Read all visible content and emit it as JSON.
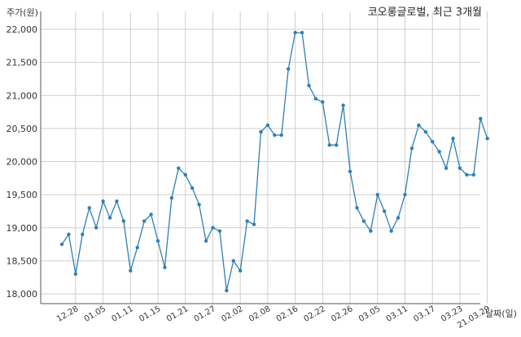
{
  "chart_data": {
    "type": "line",
    "title": "코오롱글로벌, 최근 3개월",
    "ylabel": "주가(원)",
    "xlabel": "날짜(일)",
    "ylim": [
      17800,
      22200
    ],
    "yticks": [
      18000,
      18500,
      19000,
      19500,
      20000,
      20500,
      21000,
      21500,
      22000
    ],
    "ytick_labels": [
      "18,000",
      "18,500",
      "19,000",
      "19,500",
      "20,000",
      "20,500",
      "21,000",
      "21,500",
      "22,000"
    ],
    "xtick_labels": [
      "12.28",
      "01.05",
      "01.11",
      "01.15",
      "01.21",
      "01.27",
      "02.02",
      "02.08",
      "02.16",
      "02.22",
      "02.26",
      "03.05",
      "03.11",
      "03.17",
      "03.23",
      "21.03.29"
    ],
    "xtick_index": [
      2,
      6,
      10,
      14,
      18,
      22,
      26,
      30,
      34,
      38,
      42,
      46,
      50,
      54,
      58,
      62
    ],
    "grid": true,
    "color": "#2e7fb5",
    "values": [
      18750,
      18900,
      18300,
      18900,
      19300,
      19000,
      19400,
      19150,
      19400,
      19100,
      18350,
      18700,
      19100,
      19200,
      18800,
      18400,
      19450,
      19900,
      19800,
      19600,
      19350,
      18800,
      19000,
      18950,
      18050,
      18500,
      18350,
      19100,
      19050,
      20450,
      20550,
      20400,
      20400,
      21400,
      21950,
      21950,
      21150,
      20950,
      20900,
      20250,
      20250,
      20850,
      19850,
      19300,
      19100,
      18950,
      19500,
      19250,
      18950,
      19150,
      19500,
      20200,
      20550,
      20450,
      20300,
      20150,
      19900,
      20350,
      19900,
      19800,
      19800,
      20650,
      20350
    ]
  }
}
